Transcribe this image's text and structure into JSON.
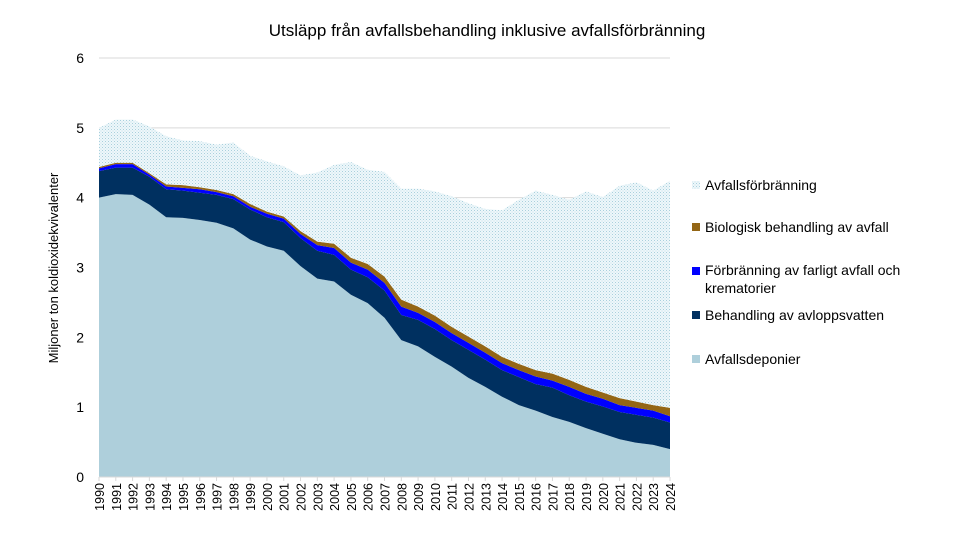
{
  "chart_data": {
    "type": "area",
    "stacked": true,
    "title": "Utsläpp från avfallsbehandling inklusive avfallsförbränning",
    "xlabel": "",
    "ylabel": "Miljoner ton koldioxidekvivalenter",
    "ylim": [
      0,
      6
    ],
    "yticks": [
      0,
      1,
      2,
      3,
      4,
      5,
      6
    ],
    "grid": true,
    "legend_position": "right",
    "categories": [
      "1990",
      "1991",
      "1992",
      "1993",
      "1994",
      "1995",
      "1996",
      "1997",
      "1998",
      "1999",
      "2000",
      "2001",
      "2002",
      "2003",
      "2004",
      "2005",
      "2006",
      "2007",
      "2008",
      "2009",
      "2010",
      "2011",
      "2012",
      "2013",
      "2014",
      "2015",
      "2016",
      "2017",
      "2018",
      "2019",
      "2020",
      "2021",
      "2022",
      "2023",
      "2024"
    ],
    "series": [
      {
        "name": "Avfallsdeponier",
        "color": "#aecfdb",
        "values": [
          4.0,
          4.05,
          4.04,
          3.9,
          3.72,
          3.71,
          3.68,
          3.64,
          3.56,
          3.4,
          3.3,
          3.24,
          3.02,
          2.84,
          2.8,
          2.61,
          2.49,
          2.28,
          1.96,
          1.87,
          1.72,
          1.58,
          1.42,
          1.29,
          1.15,
          1.03,
          0.95,
          0.86,
          0.79,
          0.7,
          0.62,
          0.54,
          0.49,
          0.46,
          0.4
        ]
      },
      {
        "name": "Behandling av avloppsvatten",
        "color": "#003060",
        "values": [
          0.38,
          0.38,
          0.39,
          0.4,
          0.4,
          0.39,
          0.39,
          0.4,
          0.42,
          0.43,
          0.42,
          0.41,
          0.4,
          0.4,
          0.38,
          0.36,
          0.37,
          0.39,
          0.36,
          0.38,
          0.4,
          0.38,
          0.4,
          0.39,
          0.38,
          0.4,
          0.38,
          0.42,
          0.38,
          0.38,
          0.39,
          0.39,
          0.4,
          0.39,
          0.38
        ]
      },
      {
        "name": "Förbränning av farligt avfall och krematorier",
        "color": "#0000ff",
        "values": [
          0.04,
          0.05,
          0.05,
          0.03,
          0.04,
          0.04,
          0.05,
          0.04,
          0.04,
          0.04,
          0.05,
          0.05,
          0.06,
          0.08,
          0.1,
          0.1,
          0.11,
          0.11,
          0.12,
          0.1,
          0.1,
          0.1,
          0.1,
          0.1,
          0.1,
          0.1,
          0.11,
          0.1,
          0.12,
          0.11,
          0.11,
          0.1,
          0.1,
          0.1,
          0.09
        ]
      },
      {
        "name": "Biologisk behandling av avfall",
        "color": "#946615",
        "values": [
          0.02,
          0.02,
          0.02,
          0.02,
          0.03,
          0.04,
          0.03,
          0.03,
          0.03,
          0.04,
          0.03,
          0.03,
          0.04,
          0.05,
          0.06,
          0.07,
          0.08,
          0.09,
          0.1,
          0.09,
          0.09,
          0.09,
          0.09,
          0.09,
          0.09,
          0.09,
          0.09,
          0.1,
          0.1,
          0.1,
          0.09,
          0.1,
          0.09,
          0.08,
          0.12
        ]
      },
      {
        "name": "Avfallsförbränning",
        "color": "#dbeef4",
        "values": [
          0.56,
          0.62,
          0.62,
          0.67,
          0.69,
          0.64,
          0.66,
          0.65,
          0.74,
          0.69,
          0.72,
          0.72,
          0.8,
          0.99,
          1.13,
          1.37,
          1.35,
          1.5,
          1.59,
          1.69,
          1.78,
          1.87,
          1.91,
          1.97,
          2.1,
          2.35,
          2.57,
          2.56,
          2.58,
          2.8,
          2.8,
          3.04,
          3.14,
          3.07,
          3.25
        ]
      }
    ],
    "legend_order": [
      "Avfallsförbränning",
      "Biologisk behandling av avfall",
      "Förbränning av farligt avfall och krematorier",
      "Behandling av avloppsvatten",
      "Avfallsdeponier"
    ]
  }
}
